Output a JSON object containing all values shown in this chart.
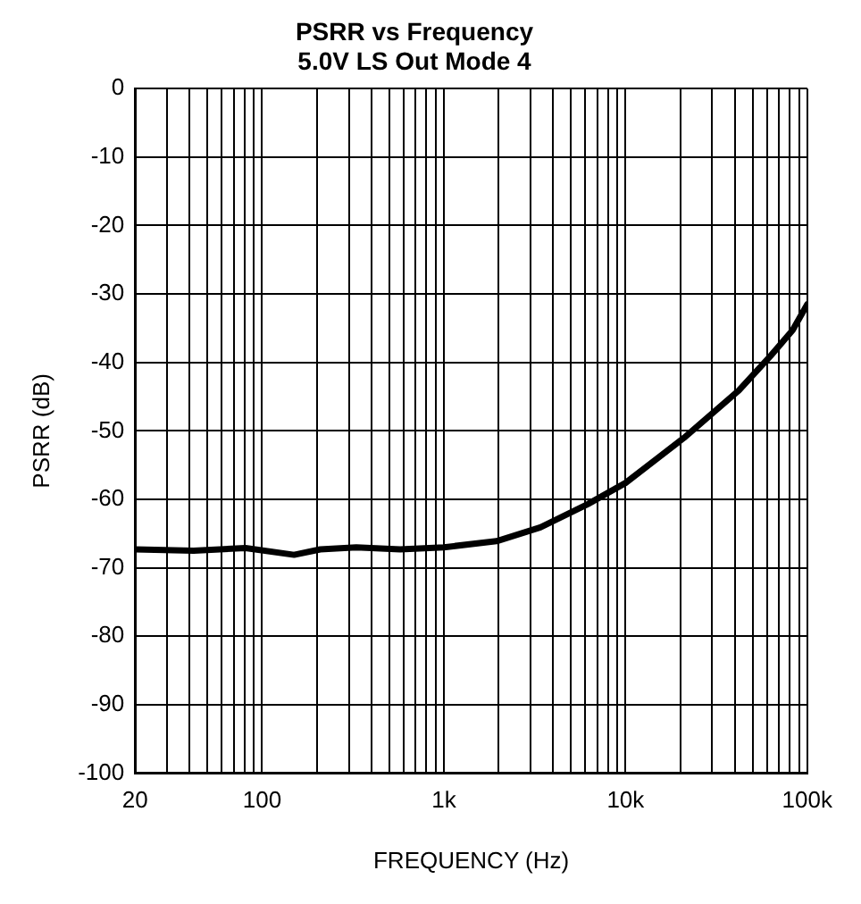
{
  "chart_data": {
    "type": "line",
    "title": "PSRR vs Frequency",
    "subtitle": "5.0V LS Out Mode 4",
    "xlabel": "FREQUENCY (Hz)",
    "ylabel": "PSRR (dB)",
    "log": "x",
    "x": [
      20,
      42,
      81,
      150,
      209,
      330,
      575,
      1000,
      1950,
      3400,
      6200,
      10000,
      21000,
      42000,
      63000,
      83000,
      100000
    ],
    "series": [
      {
        "color": "#000000",
        "values": [
          -67.3,
          -67.5,
          -67.1,
          -68.1,
          -67.3,
          -67,
          -67.3,
          -67,
          -66.1,
          -64.1,
          -60.7,
          -57.6,
          -51,
          -44.1,
          -39,
          -35.3,
          -31.5
        ]
      }
    ],
    "xlim": [
      20,
      100000
    ],
    "xticks": [
      20,
      {
        "value": 30,
        "label": null
      },
      {
        "value": 40,
        "label": null
      },
      {
        "value": 50,
        "label": null
      },
      {
        "value": 60,
        "label": null
      },
      {
        "value": 70,
        "label": null
      },
      {
        "value": 80,
        "label": null
      },
      {
        "value": 90,
        "label": null
      },
      100,
      {
        "value": 200,
        "label": null
      },
      {
        "value": 300,
        "label": null
      },
      {
        "value": 400,
        "label": null
      },
      {
        "value": 500,
        "label": null
      },
      {
        "value": 600,
        "label": null
      },
      {
        "value": 700,
        "label": null
      },
      {
        "value": 800,
        "label": null
      },
      {
        "value": 900,
        "label": null
      },
      {
        "value": 1000,
        "label": "1k"
      },
      {
        "value": 2000,
        "label": null
      },
      {
        "value": 3000,
        "label": null
      },
      {
        "value": 4000,
        "label": null
      },
      {
        "value": 5000,
        "label": null
      },
      {
        "value": 6000,
        "label": null
      },
      {
        "value": 7000,
        "label": null
      },
      {
        "value": 8000,
        "label": null
      },
      {
        "value": 9000,
        "label": null
      },
      {
        "value": 10000,
        "label": "10k"
      },
      {
        "value": 20000,
        "label": null
      },
      {
        "value": 30000,
        "label": null
      },
      {
        "value": 40000,
        "label": null
      },
      {
        "value": 50000,
        "label": null
      },
      {
        "value": 60000,
        "label": null
      },
      {
        "value": 70000,
        "label": null
      },
      {
        "value": 80000,
        "label": null
      },
      {
        "value": 90000,
        "label": null
      },
      {
        "value": 100000,
        "label": "100k"
      }
    ],
    "ylim": [
      -100,
      0
    ],
    "yticks": [
      0,
      -10,
      -20,
      -30,
      -40,
      -50,
      -60,
      -70,
      -80,
      -90,
      -100
    ],
    "grid": true,
    "legend": false,
    "marker": "none",
    "line_style": "solid"
  }
}
